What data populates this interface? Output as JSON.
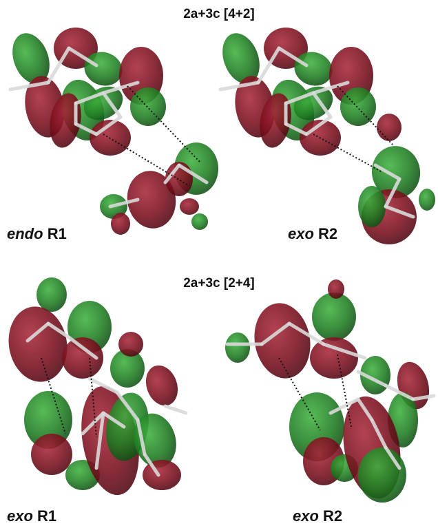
{
  "sections": [
    {
      "title": "2a+3c [4+2]",
      "structures": [
        {
          "conformation": "endo",
          "label": "R1"
        },
        {
          "conformation": "exo",
          "label": "R2"
        }
      ]
    },
    {
      "title": "2a+3c [2+4]",
      "structures": [
        {
          "conformation": "exo",
          "label": "R1"
        },
        {
          "conformation": "exo",
          "label": "R2"
        }
      ]
    }
  ]
}
